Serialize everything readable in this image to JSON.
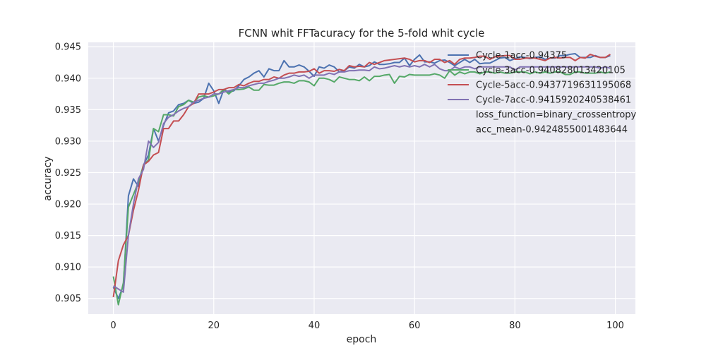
{
  "chart_data": {
    "type": "line",
    "title": "FCNN whit FFTacuracy for the 5-fold whit cycle",
    "xlabel": "epoch",
    "ylabel": "accuracy",
    "xlim": [
      -5,
      104
    ],
    "ylim": [
      0.9025,
      0.9457
    ],
    "xticks": [
      0,
      20,
      40,
      60,
      80,
      100
    ],
    "yticks": [
      0.905,
      0.91,
      0.915,
      0.92,
      0.925,
      0.93,
      0.935,
      0.94,
      0.945
    ],
    "ytick_labels": [
      "0.905",
      "0.910",
      "0.915",
      "0.920",
      "0.925",
      "0.930",
      "0.935",
      "0.940",
      "0.945"
    ],
    "grid": true,
    "background": "#eaeaf2",
    "legend_position": "top-right",
    "series": [
      {
        "name": "Cycle-1acc-0.94375",
        "color": "#4c72b0",
        "x": [
          0,
          1,
          2,
          3,
          4,
          5,
          6,
          7,
          8,
          9,
          10,
          11,
          12,
          13,
          14,
          15,
          16,
          17,
          18,
          19,
          20,
          21,
          22,
          23,
          24,
          25,
          26,
          27,
          28,
          29,
          30,
          31,
          32,
          33,
          34,
          35,
          36,
          37,
          38,
          39,
          40,
          41,
          42,
          43,
          44,
          45,
          46,
          47,
          48,
          49,
          50,
          51,
          52,
          53,
          54,
          55,
          56,
          57,
          58,
          59,
          60,
          61,
          62,
          63,
          64,
          65,
          66,
          67,
          68,
          69,
          70,
          71,
          72,
          73,
          74,
          75,
          76,
          77,
          78,
          79,
          80,
          81,
          82,
          83,
          84,
          85,
          86,
          87,
          88,
          89,
          90,
          91,
          92,
          93,
          94,
          95,
          96,
          97,
          98,
          99
        ],
        "values": [
          0.9068,
          0.905,
          0.907,
          0.9213,
          0.924,
          0.9228,
          0.9262,
          0.9278,
          0.932,
          0.93,
          0.9325,
          0.9345,
          0.9348,
          0.9358,
          0.936,
          0.9365,
          0.936,
          0.9362,
          0.9368,
          0.9392,
          0.938,
          0.936,
          0.9382,
          0.9378,
          0.938,
          0.9388,
          0.9398,
          0.9402,
          0.9408,
          0.9412,
          0.9402,
          0.9415,
          0.9412,
          0.9412,
          0.9428,
          0.9418,
          0.9418,
          0.9421,
          0.9418,
          0.9411,
          0.9403,
          0.9418,
          0.9416,
          0.9421,
          0.9418,
          0.941,
          0.9412,
          0.9418,
          0.9416,
          0.9422,
          0.9418,
          0.942,
          0.9426,
          0.9422,
          0.9422,
          0.9423,
          0.9425,
          0.9425,
          0.9432,
          0.942,
          0.943,
          0.9437,
          0.9426,
          0.9426,
          0.9424,
          0.9428,
          0.9429,
          0.9425,
          0.942,
          0.9425,
          0.943,
          0.9425,
          0.943,
          0.9423,
          0.9424,
          0.9424,
          0.9428,
          0.9432,
          0.9433,
          0.9428,
          0.9431,
          0.9434,
          0.9433,
          0.9431,
          0.9433,
          0.9434,
          0.943,
          0.9432,
          0.9432,
          0.9436,
          0.9436,
          0.9438,
          0.9439,
          0.9433,
          0.9433,
          0.9433,
          0.9436,
          0.9433,
          0.9433,
          0.9436
        ]
      },
      {
        "name": "Cycle-3acc-0.940828013420105",
        "color": "#55a868",
        "x": [
          0,
          1,
          2,
          3,
          4,
          5,
          6,
          7,
          8,
          9,
          10,
          11,
          12,
          13,
          14,
          15,
          16,
          17,
          18,
          19,
          20,
          21,
          22,
          23,
          24,
          25,
          26,
          27,
          28,
          29,
          30,
          31,
          32,
          33,
          34,
          35,
          36,
          37,
          38,
          39,
          40,
          41,
          42,
          43,
          44,
          45,
          46,
          47,
          48,
          49,
          50,
          51,
          52,
          53,
          54,
          55,
          56,
          57,
          58,
          59,
          60,
          61,
          62,
          63,
          64,
          65,
          66,
          67,
          68,
          69,
          70,
          71,
          72,
          73,
          74,
          75,
          76,
          77,
          78,
          79,
          80,
          81,
          82,
          83,
          84,
          85,
          86,
          87,
          88,
          89,
          90,
          91,
          92,
          93,
          94,
          95,
          96,
          97,
          98,
          99
        ],
        "values": [
          0.9085,
          0.904,
          0.9075,
          0.9195,
          0.9215,
          0.9235,
          0.9262,
          0.927,
          0.932,
          0.9315,
          0.9342,
          0.9342,
          0.934,
          0.9355,
          0.9358,
          0.9365,
          0.9362,
          0.937,
          0.9372,
          0.937,
          0.9372,
          0.9375,
          0.9382,
          0.9375,
          0.9382,
          0.9382,
          0.9383,
          0.9386,
          0.9381,
          0.9381,
          0.939,
          0.9389,
          0.9389,
          0.9392,
          0.9394,
          0.9394,
          0.9392,
          0.9396,
          0.9396,
          0.9394,
          0.9388,
          0.94,
          0.94,
          0.9398,
          0.9394,
          0.9402,
          0.94,
          0.9398,
          0.9398,
          0.9396,
          0.9402,
          0.9396,
          0.9403,
          0.9403,
          0.9405,
          0.9406,
          0.9392,
          0.9403,
          0.9402,
          0.9406,
          0.9405,
          0.9405,
          0.9405,
          0.9405,
          0.9407,
          0.9405,
          0.94,
          0.9412,
          0.9405,
          0.941,
          0.9407,
          0.941,
          0.941,
          0.9407,
          0.941,
          0.941,
          0.9408,
          0.941,
          0.9408,
          0.9408,
          0.941,
          0.941,
          0.941,
          0.9407,
          0.941,
          0.9408,
          0.941,
          0.9408,
          0.941,
          0.941,
          0.9406,
          0.9406,
          0.941,
          0.941,
          0.9408,
          0.9408,
          0.9408,
          0.941,
          0.9408,
          0.941
        ]
      },
      {
        "name": "Cycle-5acc-0.9437719631195068",
        "color": "#c44e52",
        "x": [
          0,
          1,
          2,
          3,
          4,
          5,
          6,
          7,
          8,
          9,
          10,
          11,
          12,
          13,
          14,
          15,
          16,
          17,
          18,
          19,
          20,
          21,
          22,
          23,
          24,
          25,
          26,
          27,
          28,
          29,
          30,
          31,
          32,
          33,
          34,
          35,
          36,
          37,
          38,
          39,
          40,
          41,
          42,
          43,
          44,
          45,
          46,
          47,
          48,
          49,
          50,
          51,
          52,
          53,
          54,
          55,
          56,
          57,
          58,
          59,
          60,
          61,
          62,
          63,
          64,
          65,
          66,
          67,
          68,
          69,
          70,
          71,
          72,
          73,
          74,
          75,
          76,
          77,
          78,
          79,
          80,
          81,
          82,
          83,
          84,
          85,
          86,
          87,
          88,
          89,
          90,
          91,
          92,
          93,
          94,
          95,
          96,
          97,
          98,
          99
        ],
        "values": [
          0.9052,
          0.911,
          0.9135,
          0.915,
          0.919,
          0.9222,
          0.9262,
          0.9268,
          0.9278,
          0.9282,
          0.932,
          0.932,
          0.9332,
          0.9332,
          0.9342,
          0.9355,
          0.936,
          0.9375,
          0.9375,
          0.9375,
          0.9378,
          0.9382,
          0.9382,
          0.9385,
          0.9385,
          0.939,
          0.9388,
          0.9392,
          0.9395,
          0.9395,
          0.9398,
          0.9398,
          0.9402,
          0.94,
          0.9405,
          0.9408,
          0.9408,
          0.941,
          0.941,
          0.9411,
          0.9415,
          0.9408,
          0.9412,
          0.9412,
          0.9411,
          0.9414,
          0.9412,
          0.942,
          0.9418,
          0.9419,
          0.9418,
          0.9425,
          0.9422,
          0.9425,
          0.9428,
          0.9429,
          0.943,
          0.9431,
          0.9432,
          0.943,
          0.9426,
          0.9428,
          0.9428,
          0.9425,
          0.943,
          0.943,
          0.9425,
          0.9428,
          0.9422,
          0.943,
          0.9432,
          0.9432,
          0.9433,
          0.9435,
          0.9435,
          0.943,
          0.9434,
          0.9435,
          0.9436,
          0.9436,
          0.943,
          0.943,
          0.9432,
          0.9432,
          0.9432,
          0.943,
          0.9428,
          0.9432,
          0.9433,
          0.9432,
          0.9433,
          0.9433,
          0.9428,
          0.9433,
          0.9432,
          0.9438,
          0.9435,
          0.9433,
          0.9433,
          0.9438
        ]
      },
      {
        "name": "Cycle-7acc-0.9415920240538461",
        "color": "#8172b3",
        "x": [
          0,
          1,
          2,
          3,
          4,
          5,
          6,
          7,
          8,
          9,
          10,
          11,
          12,
          13,
          14,
          15,
          16,
          17,
          18,
          19,
          20,
          21,
          22,
          23,
          24,
          25,
          26,
          27,
          28,
          29,
          30,
          31,
          32,
          33,
          34,
          35,
          36,
          37,
          38,
          39,
          40,
          41,
          42,
          43,
          44,
          45,
          46,
          47,
          48,
          49,
          50,
          51,
          52,
          53,
          54,
          55,
          56,
          57,
          58,
          59,
          60,
          61,
          62,
          63,
          64,
          65,
          66,
          67,
          68,
          69,
          70,
          71,
          72,
          73,
          74,
          75,
          76,
          77,
          78,
          79,
          80,
          81,
          82,
          83,
          84,
          85,
          86,
          87,
          88,
          89,
          90,
          91,
          92,
          93,
          94,
          95,
          96,
          97,
          98,
          99
        ],
        "values": [
          0.907,
          0.9065,
          0.906,
          0.915,
          0.92,
          0.924,
          0.9255,
          0.93,
          0.929,
          0.9298,
          0.9328,
          0.9338,
          0.9342,
          0.9348,
          0.9352,
          0.9355,
          0.9362,
          0.9365,
          0.9368,
          0.937,
          0.9375,
          0.9375,
          0.9378,
          0.938,
          0.9382,
          0.9385,
          0.9385,
          0.9388,
          0.939,
          0.9392,
          0.9392,
          0.9395,
          0.9397,
          0.94,
          0.94,
          0.9402,
          0.9405,
          0.9403,
          0.9405,
          0.94,
          0.9405,
          0.9405,
          0.9405,
          0.9408,
          0.9406,
          0.941,
          0.941,
          0.9412,
          0.9412,
          0.9413,
          0.9413,
          0.9412,
          0.9418,
          0.9415,
          0.9416,
          0.9418,
          0.942,
          0.9418,
          0.942,
          0.9418,
          0.942,
          0.9418,
          0.9422,
          0.9418,
          0.9422,
          0.9415,
          0.9412,
          0.9412,
          0.9418,
          0.9415,
          0.9418,
          0.9418,
          0.9415,
          0.9418,
          0.9418,
          0.9418,
          0.9418,
          0.9418,
          0.9418,
          0.9418,
          0.9413,
          0.9418,
          0.9418,
          0.9418,
          0.9418,
          0.9418,
          0.9418,
          0.9418,
          0.9418,
          0.9418,
          0.9418,
          0.9418,
          0.9418,
          0.9418,
          0.9418,
          0.9418,
          0.9418,
          0.9416,
          0.9418,
          0.9416
        ]
      }
    ],
    "legend_extra": [
      "loss_function=binary_crossentropy",
      "acc_mean-0.9424855001483644"
    ]
  }
}
